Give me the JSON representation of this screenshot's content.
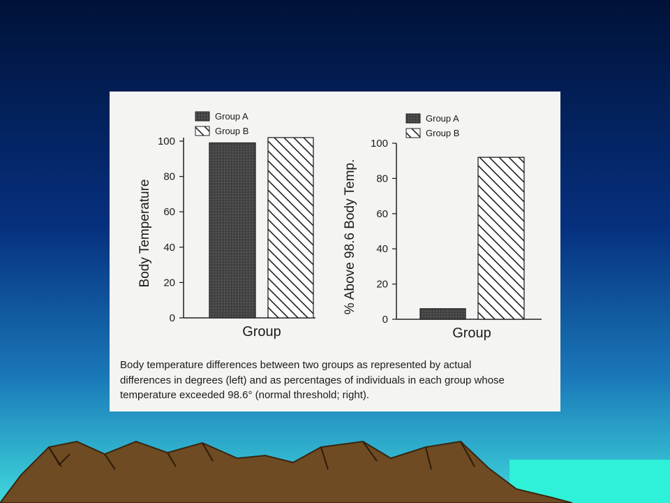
{
  "chart_data": [
    {
      "type": "bar",
      "ylabel": "Body Temperature",
      "xlabel": "Group",
      "series": [
        {
          "name": "Group A",
          "color": "#454545",
          "hatch": false,
          "values": [
            99
          ]
        },
        {
          "name": "Group B",
          "color": "#ffffff",
          "hatch": true,
          "values": [
            102
          ]
        }
      ],
      "ylim": [
        0,
        102
      ],
      "yticks": [
        0,
        20,
        40,
        60,
        80,
        100
      ]
    },
    {
      "type": "bar",
      "ylabel": "% Above 98.6 Body Temp.",
      "xlabel": "Group",
      "series": [
        {
          "name": "Group A",
          "color": "#454545",
          "hatch": false,
          "values": [
            6
          ]
        },
        {
          "name": "Group B",
          "color": "#ffffff",
          "hatch": true,
          "values": [
            92
          ]
        }
      ],
      "ylim": [
        0,
        100
      ],
      "yticks": [
        0,
        20,
        40,
        60,
        80,
        100
      ]
    }
  ],
  "caption": [
    "Body temperature differences between two groups as represented by actual",
    "differences in degrees (left) and as percentages of individuals in each group whose",
    "temperature exceeded 98.6° (normal threshold; right)."
  ]
}
